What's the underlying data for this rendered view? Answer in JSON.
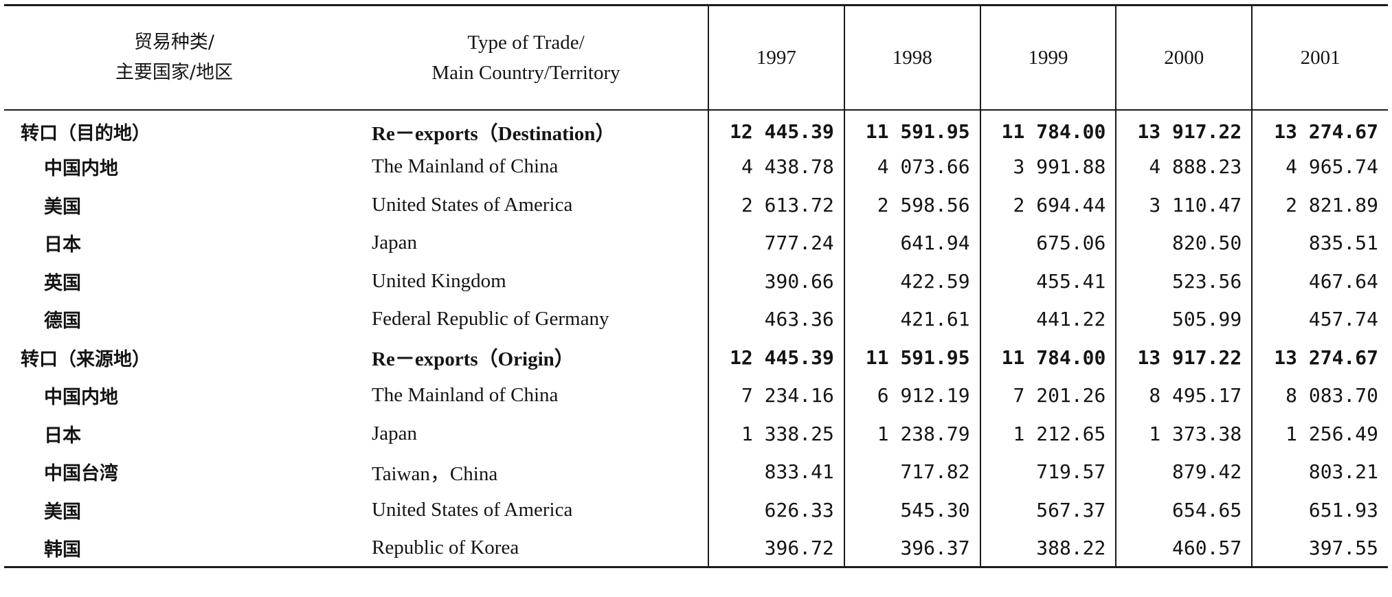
{
  "table": {
    "header": {
      "cn_line1": "贸易种类/",
      "cn_line2": "主要国家/地区",
      "en_line1": "Type of Trade/",
      "en_line2": "Main Country/Territory",
      "years": [
        "1997",
        "1998",
        "1999",
        "2000",
        "2001"
      ]
    },
    "rows": [
      {
        "cn": "转口（目的地）",
        "en": "Re－exports（Destination）",
        "values": [
          "12 445.39",
          "11 591.95",
          "11 784.00",
          "13 917.22",
          "13 274.67"
        ]
      },
      {
        "cn": "中国内地",
        "en": "The Mainland of China",
        "values": [
          "4 438.78",
          "4 073.66",
          "3 991.88",
          "4 888.23",
          "4 965.74"
        ]
      },
      {
        "cn": "美国",
        "en": "United States of America",
        "values": [
          "2 613.72",
          "2 598.56",
          "2 694.44",
          "3 110.47",
          "2 821.89"
        ]
      },
      {
        "cn": "日本",
        "en": "Japan",
        "values": [
          "777.24",
          "641.94",
          "675.06",
          "820.50",
          "835.51"
        ]
      },
      {
        "cn": "英国",
        "en": "United Kingdom",
        "values": [
          "390.66",
          "422.59",
          "455.41",
          "523.56",
          "467.64"
        ]
      },
      {
        "cn": "德国",
        "en": "Federal Republic of Germany",
        "values": [
          "463.36",
          "421.61",
          "441.22",
          "505.99",
          "457.74"
        ]
      },
      {
        "cn": "转口（来源地）",
        "en": "Re－exports（Origin）",
        "values": [
          "12 445.39",
          "11 591.95",
          "11 784.00",
          "13 917.22",
          "13 274.67"
        ]
      },
      {
        "cn": "中国内地",
        "en": "The Mainland of China",
        "values": [
          "7 234.16",
          "6 912.19",
          "7 201.26",
          "8 495.17",
          "8 083.70"
        ]
      },
      {
        "cn": "日本",
        "en": "Japan",
        "values": [
          "1 338.25",
          "1 238.79",
          "1 212.65",
          "1 373.38",
          "1 256.49"
        ]
      },
      {
        "cn": "中国台湾",
        "en": "Taiwan，China",
        "values": [
          "833.41",
          "717.82",
          "719.57",
          "879.42",
          "803.21"
        ]
      },
      {
        "cn": "美国",
        "en": "United States of America",
        "values": [
          "626.33",
          "545.30",
          "567.37",
          "654.65",
          "651.93"
        ]
      },
      {
        "cn": "韩国",
        "en": "Republic of Korea",
        "values": [
          "396.72",
          "396.37",
          "388.22",
          "460.57",
          "397.55"
        ]
      }
    ]
  }
}
